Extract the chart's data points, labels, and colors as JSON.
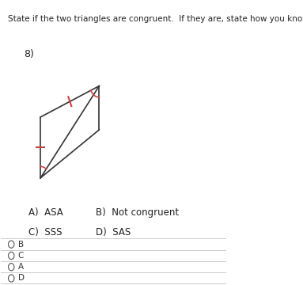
{
  "title": "State if the two triangles are congruent.  If they are, state how you know.",
  "question_num": "8)",
  "choices": [
    [
      "A)  ASA",
      "B)  Not congruent"
    ],
    [
      "C)  SSS",
      "D)  SAS"
    ]
  ],
  "radio_options": [
    "B",
    "C",
    "A",
    "D"
  ],
  "bg_color": "#ffffff",
  "line_color": "#333333",
  "tick_color": "#cc4444",
  "arc_color": "#cc4444"
}
